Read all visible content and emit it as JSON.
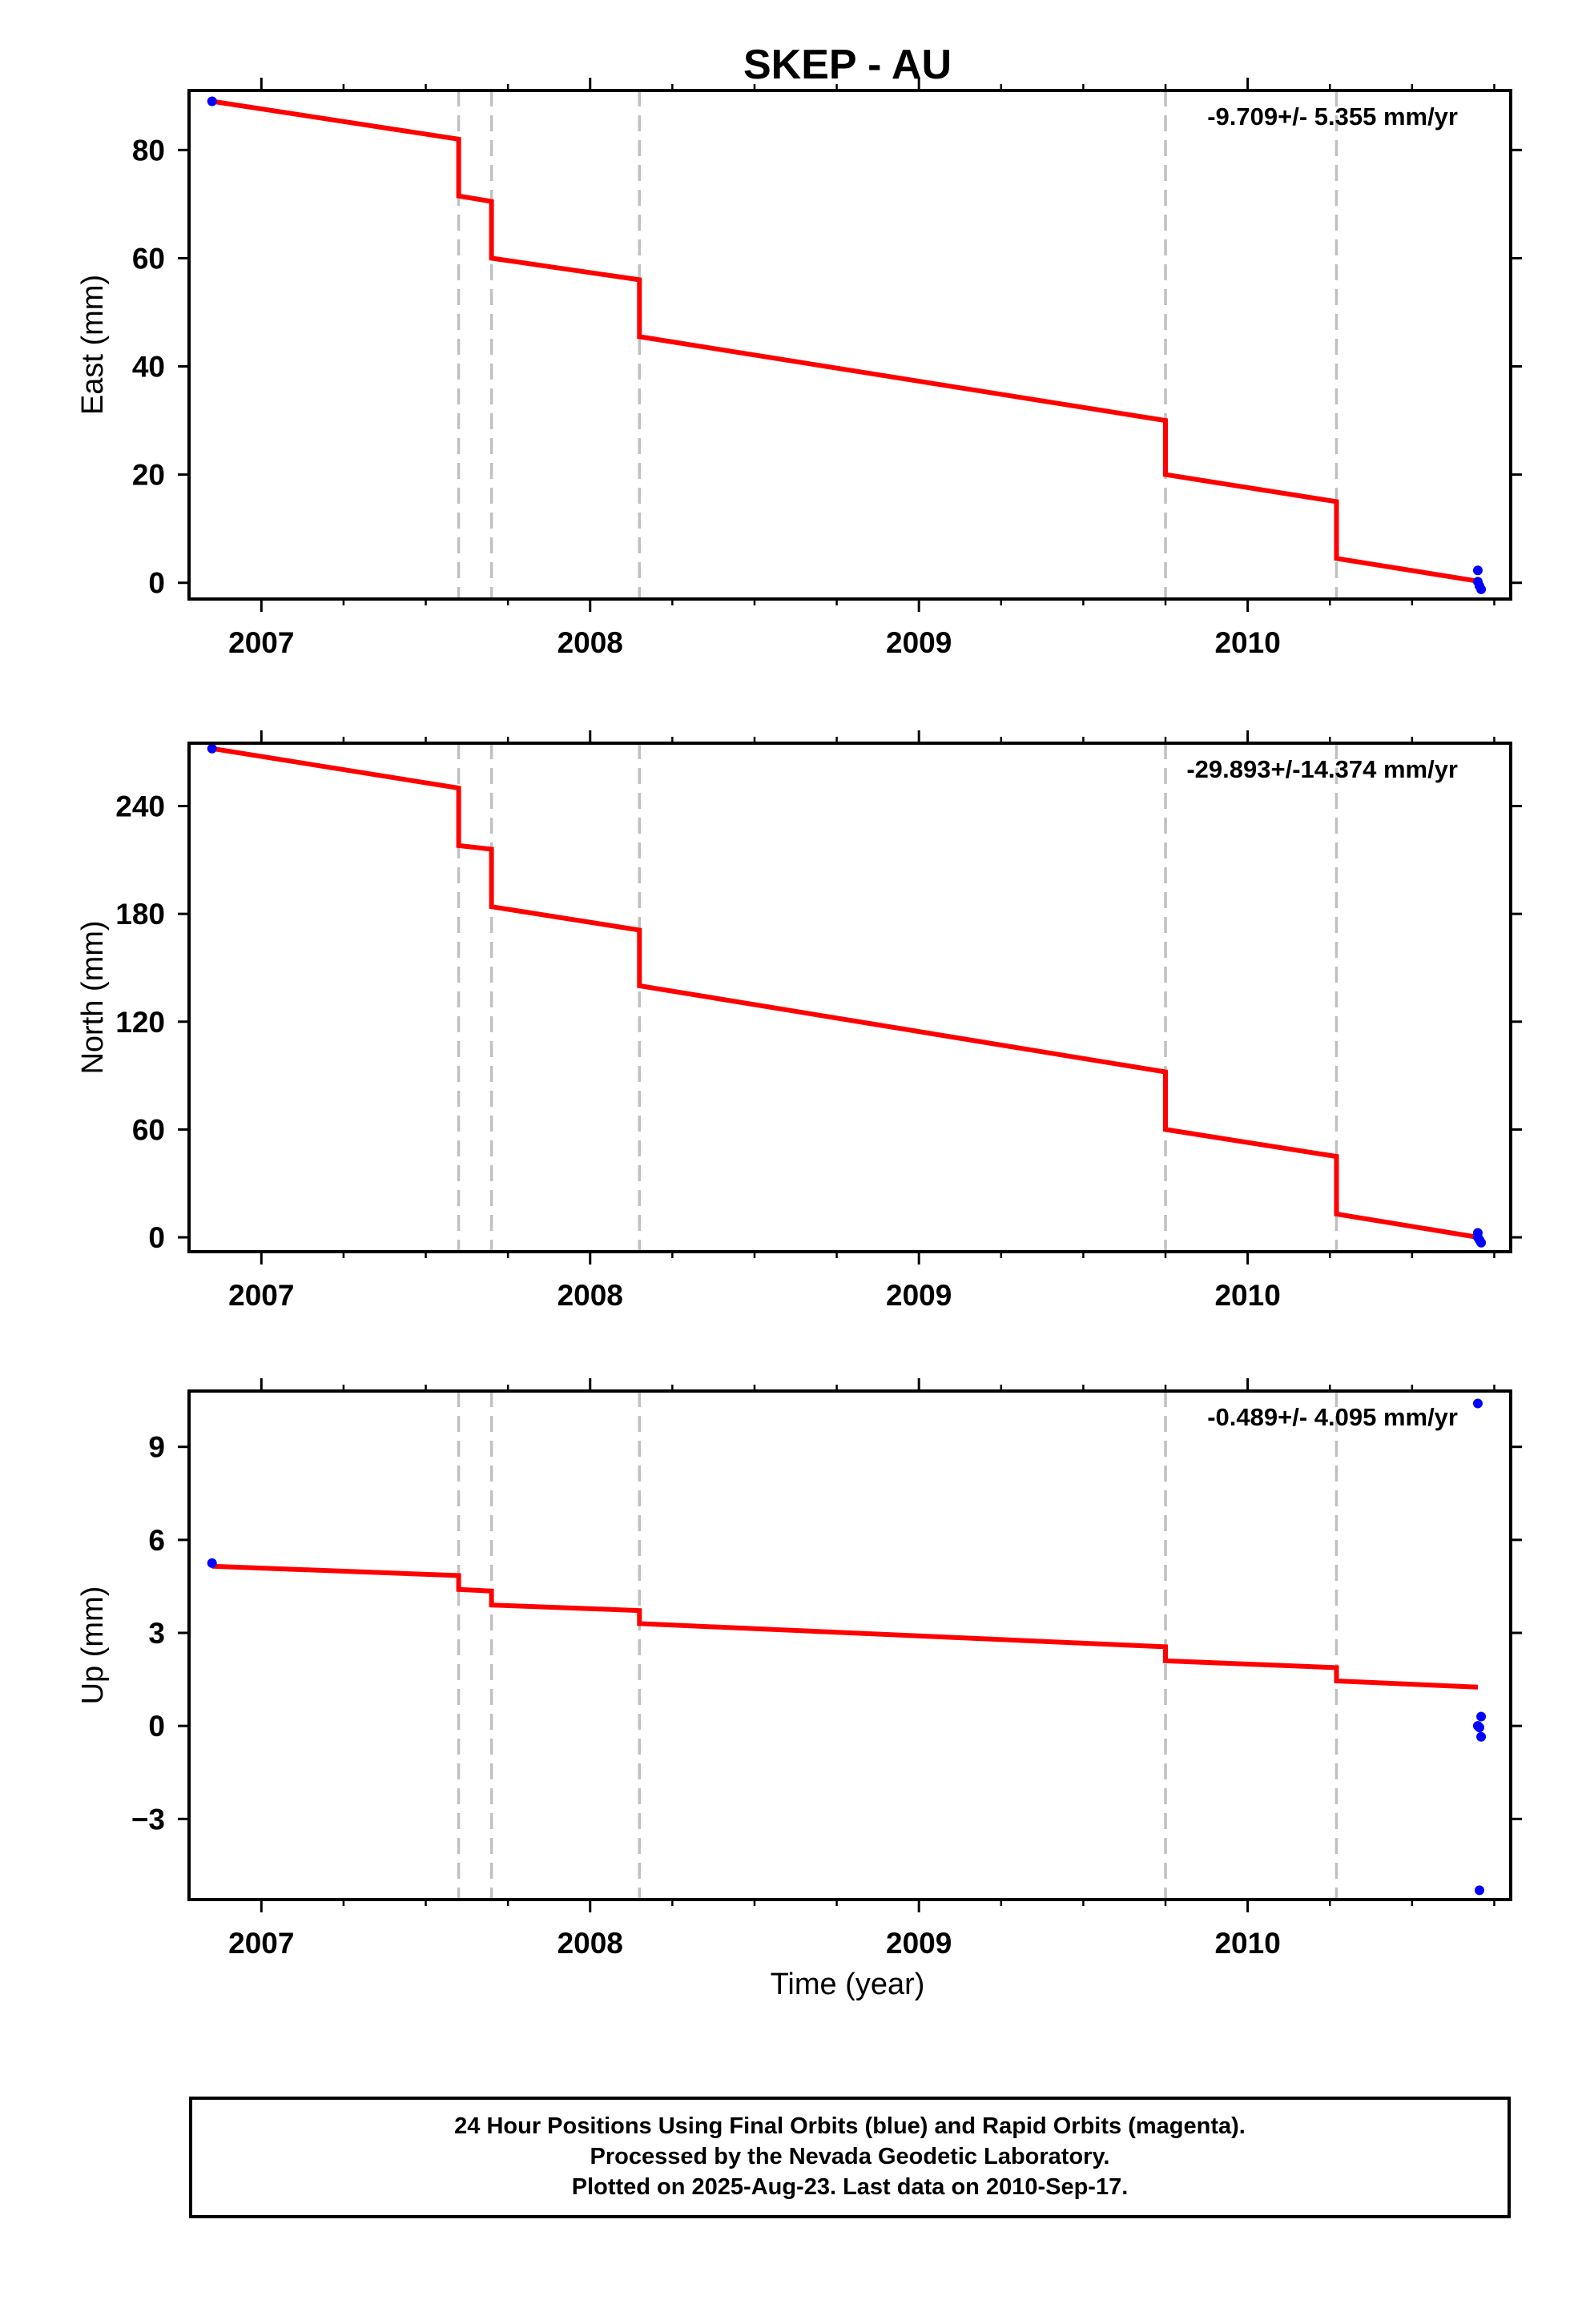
{
  "title": "SKEP - AU",
  "xlabel": "Time (year)",
  "colors": {
    "model": "#ff0000",
    "final_points": "#0000ff",
    "events": "#c0c0c0",
    "frame": "#000000"
  },
  "chart_data": [
    {
      "type": "line",
      "ylabel": "East (mm)",
      "rate": "-9.709+/- 5.355 mm/yr",
      "xlim": [
        2006.78,
        2010.8
      ],
      "ylim": [
        -3,
        91
      ],
      "yticks": [
        0,
        20,
        40,
        60,
        80
      ],
      "xticks": [
        2007,
        2008,
        2009,
        2010
      ],
      "events": [
        2007.6,
        2007.7,
        2008.15,
        2009.75,
        2010.27
      ],
      "series": [
        {
          "style": "model-line",
          "x": [
            2006.85,
            2007.6,
            2007.6,
            2007.7,
            2007.7,
            2008.15,
            2008.15,
            2009.75,
            2009.75,
            2010.27,
            2010.27,
            2010.7
          ],
          "y": [
            89,
            82,
            71.5,
            70.5,
            60,
            56,
            45.5,
            30,
            20,
            15,
            4.5,
            0.3
          ]
        },
        {
          "style": "final-points",
          "x": [
            2006.85,
            2010.7,
            2010.7,
            2010.705,
            2010.71
          ],
          "y": [
            89,
            2.3,
            0.2,
            -0.6,
            -1.2
          ]
        }
      ]
    },
    {
      "type": "line",
      "ylabel": "North (mm)",
      "rate": "-29.893+/-14.374 mm/yr",
      "xlim": [
        2006.78,
        2010.8
      ],
      "ylim": [
        -8,
        275
      ],
      "yticks": [
        0,
        60,
        120,
        180,
        240
      ],
      "xticks": [
        2007,
        2008,
        2009,
        2010
      ],
      "events": [
        2007.6,
        2007.7,
        2008.15,
        2009.75,
        2010.27
      ],
      "series": [
        {
          "style": "model-line",
          "x": [
            2006.85,
            2007.6,
            2007.6,
            2007.7,
            2007.7,
            2008.15,
            2008.15,
            2009.75,
            2009.75,
            2010.27,
            2010.27,
            2010.7
          ],
          "y": [
            272,
            250,
            218,
            216,
            184,
            171,
            140,
            92,
            60,
            45,
            13,
            0
          ]
        },
        {
          "style": "final-points",
          "x": [
            2006.85,
            2010.7,
            2010.7,
            2010.705,
            2010.71
          ],
          "y": [
            272,
            2.5,
            0,
            -1.5,
            -3
          ]
        }
      ]
    },
    {
      "type": "line",
      "ylabel": "Up (mm)",
      "rate": "-0.489+/- 4.095 mm/yr",
      "xlim": [
        2006.78,
        2010.8
      ],
      "ylim": [
        -5.6,
        10.8
      ],
      "yticks": [
        -3,
        0,
        3,
        6,
        9
      ],
      "xticks": [
        2007,
        2008,
        2009,
        2010
      ],
      "events": [
        2007.6,
        2007.7,
        2008.15,
        2009.75,
        2010.27
      ],
      "series": [
        {
          "style": "model-line",
          "x": [
            2006.85,
            2007.6,
            2007.6,
            2007.7,
            2007.7,
            2008.15,
            2008.15,
            2009.75,
            2009.75,
            2010.27,
            2010.27,
            2010.7
          ],
          "y": [
            5.15,
            4.85,
            4.4,
            4.35,
            3.9,
            3.72,
            3.3,
            2.55,
            2.1,
            1.88,
            1.45,
            1.25
          ]
        },
        {
          "style": "final-points",
          "x": [
            2006.85,
            2010.7,
            2010.7,
            2010.705,
            2010.71,
            2010.71,
            2010.705
          ],
          "y": [
            5.25,
            10.4,
            0,
            -0.05,
            0.3,
            -0.35,
            -5.3
          ]
        }
      ]
    }
  ],
  "footer": {
    "line1": "24 Hour Positions Using Final Orbits (blue) and Rapid Orbits (magenta).",
    "line2": "Processed by the Nevada Geodetic Laboratory.",
    "line3": "Plotted on 2025-Aug-23. Last data on 2010-Sep-17."
  }
}
